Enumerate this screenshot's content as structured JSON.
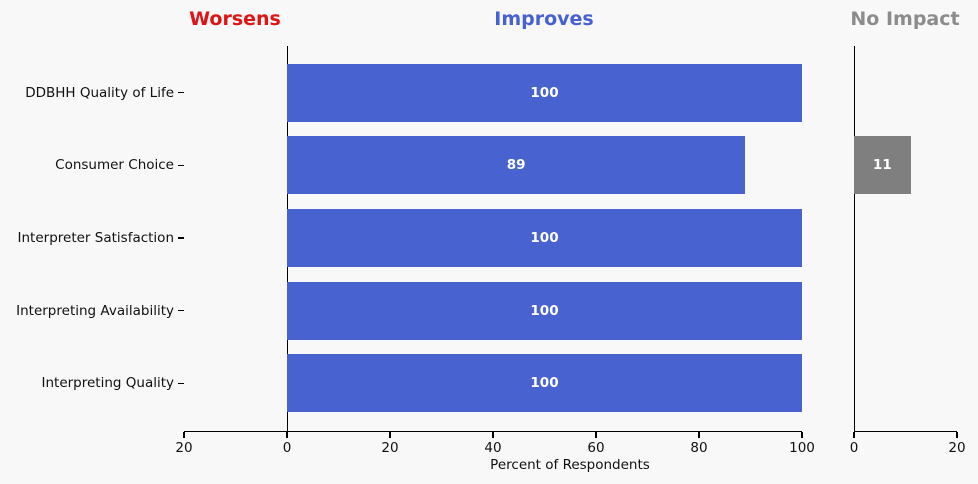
{
  "figure": {
    "background": "#f8f8f8",
    "axis_color": "#000000",
    "text_color": "#111111",
    "bar_label_color": "#ffffff"
  },
  "chart_data": {
    "type": "bar",
    "orientation": "horizontal",
    "xlabel": "Percent of Respondents",
    "grid": false,
    "categories": [
      "DDBHH Quality of Life",
      "Consumer Choice",
      "Interpreter Satisfaction",
      "Interpreting Availability",
      "Interpreting Quality"
    ],
    "panels": [
      {
        "title": "Worsens",
        "title_color": "#e01414",
        "bar_color": "#e01414",
        "xlim": [
          20,
          0
        ],
        "ticks": [
          20,
          0
        ],
        "values": [
          0,
          0,
          0,
          0,
          0
        ],
        "left_spine": false
      },
      {
        "title": "Improves",
        "title_color": "#4661d2",
        "bar_color": "#4862d0",
        "xlim": [
          0,
          100
        ],
        "ticks": [
          0,
          20,
          40,
          60,
          80,
          100
        ],
        "values": [
          100,
          89,
          100,
          100,
          100
        ],
        "left_spine": true
      },
      {
        "title": "No Impact",
        "title_color": "#8c8c8c",
        "bar_color": "#7f7f7f",
        "xlim": [
          0,
          20
        ],
        "ticks": [
          0,
          20
        ],
        "values": [
          0,
          11,
          0,
          0,
          0
        ],
        "left_spine": true
      }
    ]
  }
}
